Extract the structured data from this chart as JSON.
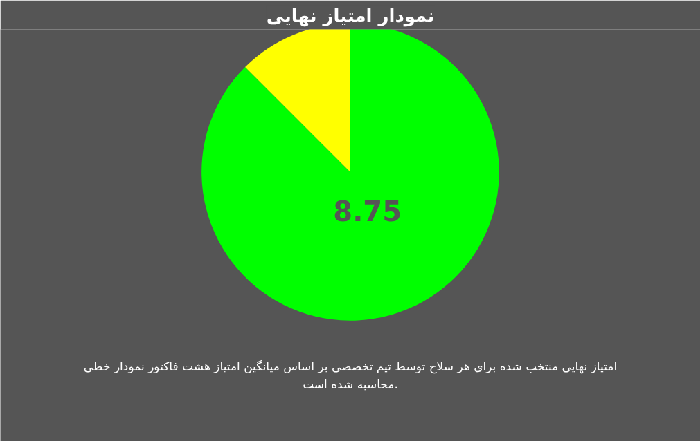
{
  "chart_data": {
    "type": "pie",
    "title": "نمودار امتیاز نهایی",
    "categories": [
      null,
      null
    ],
    "values": [
      8.75,
      1.25
    ],
    "colors": [
      "#00ff00",
      "#ffff00"
    ],
    "value_labels": [
      "8.75",
      null
    ],
    "annotations": [
      "امتیاز نهایی منتخب شده برای هر سلاح توسط تیم تخصصی بر اساس میانگین امتیاز هشت فاکتور نمودار خطی محاسبه شده است."
    ]
  }
}
